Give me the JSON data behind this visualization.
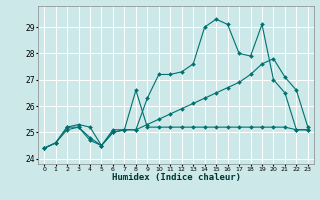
{
  "xlabel": "Humidex (Indice chaleur)",
  "bg_color": "#cce8e8",
  "grid_color": "#ffffff",
  "line_color": "#007070",
  "xlim": [
    -0.5,
    23.5
  ],
  "ylim": [
    23.8,
    29.8
  ],
  "yticks": [
    24,
    25,
    26,
    27,
    28,
    29
  ],
  "xticks": [
    0,
    1,
    2,
    3,
    4,
    5,
    6,
    7,
    8,
    9,
    10,
    11,
    12,
    13,
    14,
    15,
    16,
    17,
    18,
    19,
    20,
    21,
    22,
    23
  ],
  "s1_x": [
    0,
    1,
    2,
    3,
    4,
    5,
    6,
    7,
    8,
    9,
    10,
    11,
    12,
    13,
    14,
    15,
    16,
    17,
    18,
    19,
    20,
    21,
    22,
    23
  ],
  "s1_y": [
    24.4,
    24.6,
    25.2,
    25.3,
    25.2,
    24.5,
    25.1,
    25.1,
    26.6,
    25.2,
    25.2,
    25.2,
    25.2,
    25.2,
    25.2,
    25.2,
    25.2,
    25.2,
    25.2,
    25.2,
    25.2,
    25.2,
    25.1,
    25.1
  ],
  "s2_x": [
    0,
    1,
    2,
    3,
    4,
    5,
    6,
    7,
    8,
    9,
    10,
    11,
    12,
    13,
    14,
    15,
    16,
    17,
    18,
    19,
    20,
    21,
    22,
    23
  ],
  "s2_y": [
    24.4,
    24.6,
    25.2,
    25.2,
    24.8,
    24.5,
    25.0,
    25.1,
    25.1,
    26.3,
    27.2,
    27.2,
    27.3,
    27.6,
    29.0,
    29.3,
    29.1,
    28.0,
    27.9,
    29.1,
    27.0,
    26.5,
    25.1,
    25.1
  ],
  "s3_x": [
    0,
    1,
    2,
    3,
    4,
    5,
    6,
    7,
    8,
    9,
    10,
    11,
    12,
    13,
    14,
    15,
    16,
    17,
    18,
    19,
    20,
    21,
    22,
    23
  ],
  "s3_y": [
    24.4,
    24.6,
    25.1,
    25.2,
    24.7,
    24.5,
    25.0,
    25.1,
    25.1,
    25.3,
    25.5,
    25.7,
    25.9,
    26.1,
    26.3,
    26.5,
    26.7,
    26.9,
    27.2,
    27.6,
    27.8,
    27.1,
    26.6,
    25.2
  ]
}
